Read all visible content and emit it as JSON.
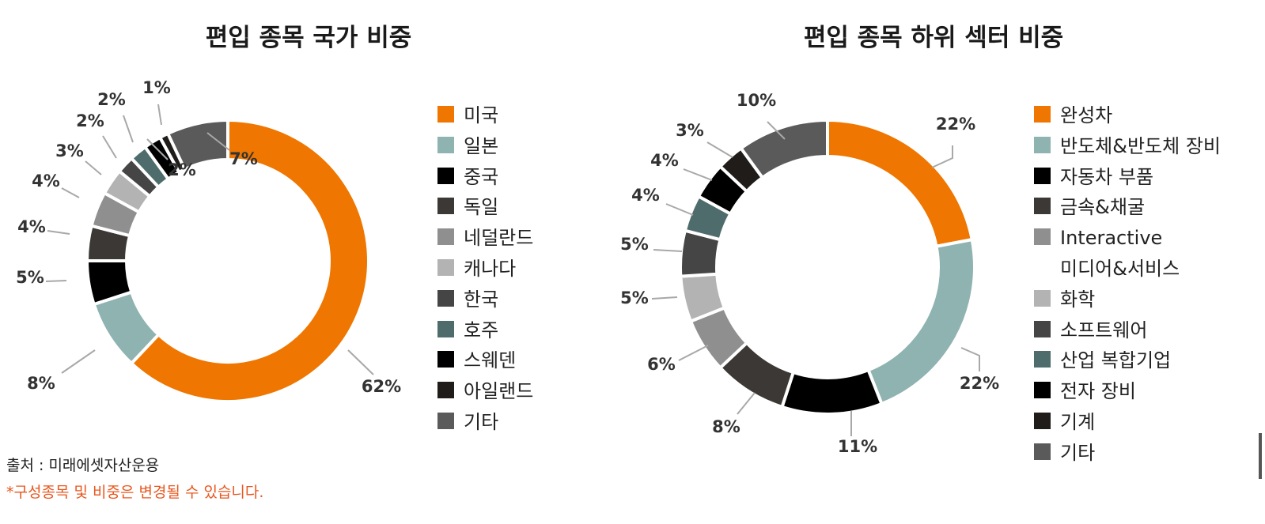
{
  "chart_data": [
    {
      "type": "pie",
      "variant": "donut",
      "title": "편입 종목 국가 비중",
      "legend_position": "right",
      "slices": [
        {
          "label": "미국",
          "value": 62,
          "display": "62%",
          "color": "#ef7600"
        },
        {
          "label": "일본",
          "value": 8,
          "display": "8%",
          "color": "#8fb3b1"
        },
        {
          "label": "중국",
          "value": 5,
          "display": "5%",
          "color": "#000000"
        },
        {
          "label": "독일",
          "value": 4,
          "display": "4%",
          "color": "#3b3835"
        },
        {
          "label": "네덜란드",
          "value": 4,
          "display": "4%",
          "color": "#8f8f8f"
        },
        {
          "label": "캐나다",
          "value": 3,
          "display": "3%",
          "color": "#b3b3b3"
        },
        {
          "label": "한국",
          "value": 2,
          "display": "2%",
          "color": "#454545"
        },
        {
          "label": "호주",
          "value": 2,
          "display": "2%",
          "color": "#4e6c6c"
        },
        {
          "label": "스웨덴",
          "value": 2,
          "display": "2%",
          "color": "#000000"
        },
        {
          "label": "아일랜드",
          "value": 1,
          "display": "1%",
          "color": "#201c1a"
        },
        {
          "label": "기타",
          "value": 7,
          "display": "7%",
          "color": "#5a5a5a"
        }
      ]
    },
    {
      "type": "pie",
      "variant": "donut",
      "title": "편입 종목 하위 섹터 비중",
      "legend_position": "right",
      "slices": [
        {
          "label": "완성차",
          "value": 22,
          "display": "22%",
          "color": "#ef7600"
        },
        {
          "label": "반도체&반도체 장비",
          "value": 22,
          "display": "22%",
          "color": "#8fb3b1"
        },
        {
          "label": "자동차 부품",
          "value": 11,
          "display": "11%",
          "color": "#000000"
        },
        {
          "label": "금속&채굴",
          "value": 8,
          "display": "8%",
          "color": "#3b3835"
        },
        {
          "label": "Interactive\n미디어&서비스",
          "value": 6,
          "display": "6%",
          "color": "#8f8f8f"
        },
        {
          "label": "화학",
          "value": 5,
          "display": "5%",
          "color": "#b3b3b3"
        },
        {
          "label": "소프트웨어",
          "value": 5,
          "display": "5%",
          "color": "#454545"
        },
        {
          "label": "산업 복합기업",
          "value": 4,
          "display": "4%",
          "color": "#4e6c6c"
        },
        {
          "label": "전자 장비",
          "value": 4,
          "display": "4%",
          "color": "#000000"
        },
        {
          "label": "기계",
          "value": 3,
          "display": "3%",
          "color": "#201c1a"
        },
        {
          "label": "기타",
          "value": 10,
          "display": "10%",
          "color": "#5a5a5a"
        }
      ]
    }
  ],
  "footer": {
    "source": "출처 : 미래에셋자산운용",
    "disclaimer": "*구성종목 및 비중은 변경될 수 있습니다."
  }
}
